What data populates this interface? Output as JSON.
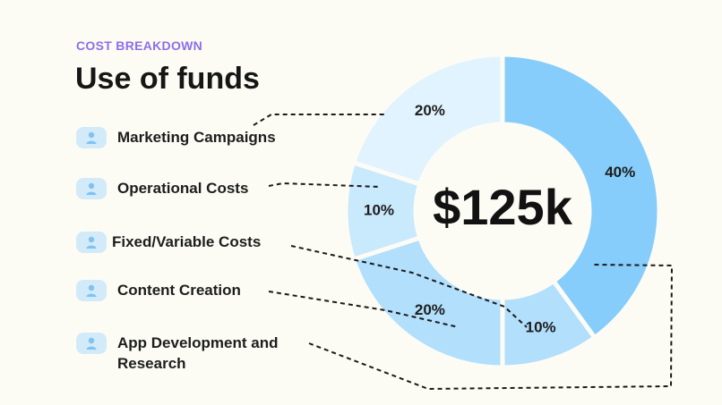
{
  "header": {
    "eyebrow": "COST BREAKDOWN",
    "title": "Use of funds"
  },
  "chart_data": {
    "type": "pie",
    "variant": "donut",
    "center_label": "$125k",
    "slices": [
      {
        "label": "App Development and Research",
        "value": 40,
        "display": "40%",
        "color": "#86cdfb"
      },
      {
        "label": "Fixed/Variable Costs",
        "value": 10,
        "display": "10%",
        "color": "#b1dffc"
      },
      {
        "label": "Content Creation",
        "value": 20,
        "display": "20%",
        "color": "#b1dffc"
      },
      {
        "label": "Operational Costs",
        "value": 10,
        "display": "10%",
        "color": "#c9e9fd"
      },
      {
        "label": "Marketing Campaigns",
        "value": 20,
        "display": "20%",
        "color": "#e1f3fe"
      }
    ]
  },
  "legend": {
    "items": [
      {
        "label": "Marketing Campaigns",
        "icon": "user-icon"
      },
      {
        "label": "Operational Costs",
        "icon": "user-icon"
      },
      {
        "label": "Fixed/Variable Costs",
        "icon": "user-icon"
      },
      {
        "label": "Content Creation",
        "icon": "user-icon"
      },
      {
        "label": "App Development and Research",
        "icon": "user-icon"
      }
    ]
  }
}
